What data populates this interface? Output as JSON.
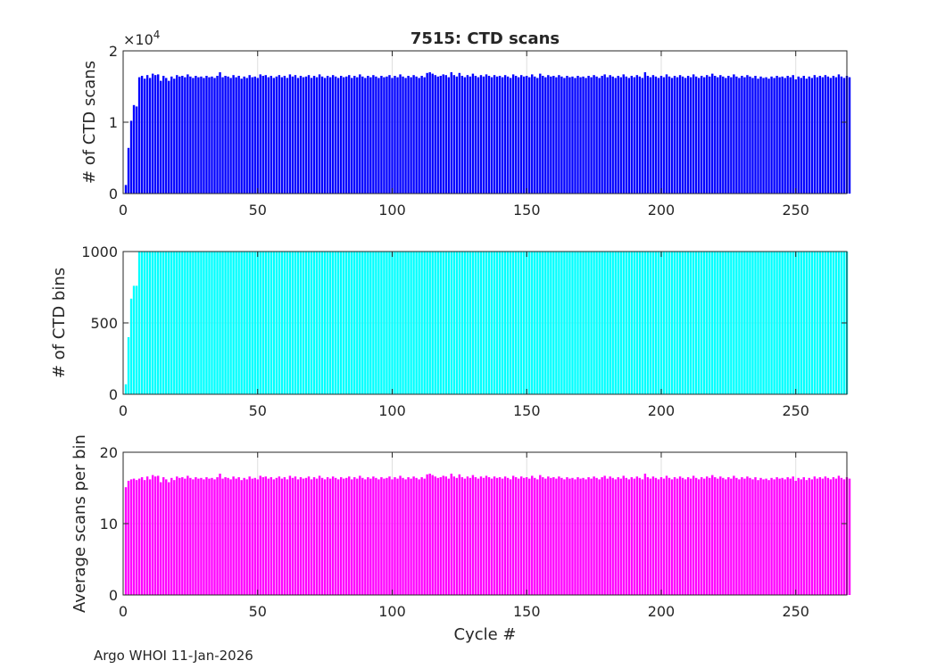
{
  "footer": "Argo WHOI 11-Jan-2026",
  "colors": {
    "scans": "#0000ff",
    "bins": "#00ffff",
    "avg": "#ff00ff",
    "axis": "#262626",
    "grid": "#dfdfdf"
  },
  "chart_data": [
    {
      "type": "bar",
      "title": "7515: CTD scans",
      "xlabel": "",
      "ylabel": "# of CTD scans",
      "y_exponent_label": "×10",
      "y_exponent": "4",
      "xlim": [
        0,
        269
      ],
      "ylim": [
        0,
        2
      ],
      "xticks": [
        0,
        50,
        100,
        150,
        200,
        250
      ],
      "yticks": [
        0,
        1,
        2
      ],
      "grid": true,
      "x": "cycles 1-268",
      "values_x1e4": [
        0.12,
        0.64,
        1.02,
        1.24,
        1.22,
        1.63,
        1.65,
        1.61,
        1.66,
        1.62,
        1.68,
        1.66,
        1.67,
        1.58,
        1.65,
        1.62,
        1.58,
        1.64,
        1.61,
        1.66,
        1.64,
        1.65,
        1.63,
        1.67,
        1.64,
        1.62,
        1.65,
        1.63,
        1.64,
        1.62,
        1.65,
        1.63,
        1.64,
        1.62,
        1.65,
        1.7,
        1.63,
        1.65,
        1.64,
        1.62,
        1.66,
        1.63,
        1.65,
        1.61,
        1.64,
        1.62,
        1.66,
        1.63,
        1.64,
        1.62,
        1.67,
        1.65,
        1.66,
        1.63,
        1.65,
        1.62,
        1.64,
        1.66,
        1.63,
        1.65,
        1.62,
        1.67,
        1.64,
        1.66,
        1.62,
        1.65,
        1.63,
        1.64,
        1.66,
        1.62,
        1.65,
        1.63,
        1.67,
        1.64,
        1.62,
        1.65,
        1.63,
        1.66,
        1.64,
        1.62,
        1.65,
        1.63,
        1.64,
        1.66,
        1.62,
        1.65,
        1.63,
        1.67,
        1.64,
        1.62,
        1.65,
        1.63,
        1.66,
        1.64,
        1.62,
        1.65,
        1.63,
        1.64,
        1.66,
        1.62,
        1.65,
        1.63,
        1.67,
        1.64,
        1.62,
        1.65,
        1.63,
        1.66,
        1.64,
        1.62,
        1.65,
        1.63,
        1.69,
        1.7,
        1.68,
        1.66,
        1.64,
        1.65,
        1.67,
        1.66,
        1.63,
        1.7,
        1.66,
        1.64,
        1.69,
        1.65,
        1.63,
        1.66,
        1.64,
        1.68,
        1.65,
        1.63,
        1.66,
        1.64,
        1.67,
        1.65,
        1.63,
        1.66,
        1.64,
        1.65,
        1.63,
        1.66,
        1.64,
        1.62,
        1.67,
        1.65,
        1.63,
        1.66,
        1.64,
        1.65,
        1.63,
        1.67,
        1.64,
        1.62,
        1.68,
        1.65,
        1.63,
        1.66,
        1.64,
        1.65,
        1.63,
        1.66,
        1.64,
        1.62,
        1.65,
        1.63,
        1.64,
        1.62,
        1.65,
        1.63,
        1.64,
        1.62,
        1.65,
        1.63,
        1.66,
        1.64,
        1.62,
        1.65,
        1.67,
        1.63,
        1.66,
        1.64,
        1.62,
        1.65,
        1.63,
        1.67,
        1.64,
        1.62,
        1.65,
        1.63,
        1.66,
        1.64,
        1.62,
        1.7,
        1.65,
        1.63,
        1.66,
        1.64,
        1.62,
        1.65,
        1.63,
        1.67,
        1.64,
        1.62,
        1.65,
        1.63,
        1.66,
        1.64,
        1.62,
        1.65,
        1.63,
        1.67,
        1.64,
        1.62,
        1.65,
        1.63,
        1.66,
        1.64,
        1.68,
        1.65,
        1.63,
        1.66,
        1.64,
        1.62,
        1.65,
        1.63,
        1.67,
        1.64,
        1.62,
        1.65,
        1.63,
        1.66,
        1.64,
        1.62,
        1.65,
        1.61,
        1.64,
        1.62,
        1.63,
        1.61,
        1.64,
        1.62,
        1.65,
        1.63,
        1.64,
        1.62,
        1.65,
        1.63,
        1.66,
        1.6,
        1.64,
        1.62,
        1.65,
        1.61,
        1.64,
        1.62,
        1.66,
        1.63,
        1.65,
        1.63,
        1.66,
        1.64,
        1.62,
        1.65,
        1.63,
        1.67,
        1.64,
        1.62,
        1.65,
        1.63
      ]
    },
    {
      "type": "bar",
      "title": "",
      "xlabel": "",
      "ylabel": "# of CTD bins",
      "xlim": [
        0,
        269
      ],
      "ylim": [
        0,
        1000
      ],
      "xticks": [
        0,
        50,
        100,
        150,
        200,
        250
      ],
      "yticks": [
        0,
        500,
        1000
      ],
      "grid": true,
      "x": "cycles 1-268",
      "values": [
        70,
        400,
        670,
        760,
        760,
        1000,
        1000,
        1000,
        1000,
        1000,
        1000,
        1000,
        1000,
        1000,
        1000,
        1000,
        1000,
        1000,
        1000,
        1000,
        1000,
        1000,
        1000,
        1000,
        1000,
        1000,
        1000,
        1000,
        1000,
        1000,
        1000,
        1000,
        1000,
        1000,
        1000,
        1000,
        1000,
        1000,
        1000,
        1000,
        1000,
        1000,
        1000,
        1000,
        1000,
        1000,
        1000,
        1000,
        1000,
        1000,
        1000,
        1000,
        1000,
        1000,
        1000,
        1000,
        1000,
        1000,
        1000,
        1000,
        1000,
        1000,
        1000,
        1000,
        1000,
        1000,
        1000,
        1000,
        1000,
        1000,
        1000,
        1000,
        1000,
        1000,
        1000,
        1000,
        1000,
        1000,
        1000,
        1000,
        1000,
        1000,
        1000,
        1000,
        1000,
        1000,
        1000,
        1000,
        1000,
        1000,
        1000,
        1000,
        1000,
        1000,
        1000,
        1000,
        1000,
        1000,
        1000,
        1000,
        1000,
        1000,
        1000,
        1000,
        1000,
        1000,
        1000,
        1000,
        1000,
        1000,
        1000,
        1000,
        1000,
        1000,
        1000,
        1000,
        1000,
        1000,
        1000,
        1000,
        1000,
        1000,
        1000,
        1000,
        1000,
        1000,
        1000,
        1000,
        1000,
        1000,
        1000,
        1000,
        1000,
        1000,
        1000,
        1000,
        1000,
        1000,
        1000,
        1000,
        1000,
        1000,
        1000,
        1000,
        1000,
        1000,
        1000,
        1000,
        1000,
        1000,
        1000,
        1000,
        1000,
        1000,
        1000,
        1000,
        1000,
        1000,
        1000,
        1000,
        1000,
        1000,
        1000,
        1000,
        1000,
        1000,
        1000,
        1000,
        1000,
        1000,
        1000,
        1000,
        1000,
        1000,
        1000,
        1000,
        1000,
        1000,
        1000,
        1000,
        1000,
        1000,
        1000,
        1000,
        1000,
        1000,
        1000,
        1000,
        1000,
        1000,
        1000,
        1000,
        1000,
        1000,
        1000,
        1000,
        1000,
        1000,
        1000,
        1000,
        1000,
        1000,
        1000,
        1000,
        1000,
        1000,
        1000,
        1000,
        1000,
        1000,
        1000,
        1000,
        1000,
        1000,
        1000,
        1000,
        1000,
        1000,
        1000,
        1000,
        1000,
        1000,
        1000,
        1000,
        1000,
        1000,
        1000,
        1000,
        1000,
        1000,
        1000,
        1000,
        1000,
        1000,
        1000,
        1000,
        1000,
        1000,
        1000,
        1000,
        1000,
        1000,
        1000,
        1000,
        1000,
        1000,
        1000,
        1000,
        1000,
        1000,
        1000,
        1000,
        1000,
        1000,
        1000,
        1000,
        1000,
        1000,
        1000,
        1000,
        1000,
        1000,
        1000,
        1000,
        1000,
        1000,
        1000,
        1000,
        1000
      ]
    },
    {
      "type": "bar",
      "title": "",
      "xlabel": "Cycle #",
      "ylabel": "Average scans per bin",
      "xlim": [
        0,
        269
      ],
      "ylim": [
        0,
        20
      ],
      "xticks": [
        0,
        50,
        100,
        150,
        200,
        250
      ],
      "yticks": [
        0,
        10,
        20
      ],
      "grid": true,
      "x": "cycles 1-268",
      "values": [
        15.1,
        16.0,
        16.2,
        16.3,
        16.1,
        16.3,
        16.5,
        16.1,
        16.6,
        16.2,
        16.8,
        16.6,
        16.7,
        15.8,
        16.5,
        16.2,
        15.8,
        16.4,
        16.1,
        16.6,
        16.4,
        16.5,
        16.3,
        16.7,
        16.4,
        16.2,
        16.5,
        16.3,
        16.4,
        16.2,
        16.5,
        16.3,
        16.4,
        16.2,
        16.5,
        17.0,
        16.3,
        16.5,
        16.4,
        16.2,
        16.6,
        16.3,
        16.5,
        16.1,
        16.4,
        16.2,
        16.6,
        16.3,
        16.4,
        16.2,
        16.7,
        16.5,
        16.6,
        16.3,
        16.5,
        16.2,
        16.4,
        16.6,
        16.3,
        16.5,
        16.2,
        16.7,
        16.4,
        16.6,
        16.2,
        16.5,
        16.3,
        16.4,
        16.6,
        16.2,
        16.5,
        16.3,
        16.7,
        16.4,
        16.2,
        16.5,
        16.3,
        16.6,
        16.4,
        16.2,
        16.5,
        16.3,
        16.4,
        16.6,
        16.2,
        16.5,
        16.3,
        16.7,
        16.4,
        16.2,
        16.5,
        16.3,
        16.6,
        16.4,
        16.2,
        16.5,
        16.3,
        16.4,
        16.6,
        16.2,
        16.5,
        16.3,
        16.7,
        16.4,
        16.2,
        16.5,
        16.3,
        16.6,
        16.4,
        16.2,
        16.5,
        16.3,
        16.9,
        17.0,
        16.8,
        16.6,
        16.4,
        16.5,
        16.7,
        16.6,
        16.3,
        17.0,
        16.6,
        16.4,
        16.9,
        16.5,
        16.3,
        16.6,
        16.4,
        16.8,
        16.5,
        16.3,
        16.6,
        16.4,
        16.7,
        16.5,
        16.3,
        16.6,
        16.4,
        16.5,
        16.3,
        16.6,
        16.4,
        16.2,
        16.7,
        16.5,
        16.3,
        16.6,
        16.4,
        16.5,
        16.3,
        16.7,
        16.4,
        16.2,
        16.8,
        16.5,
        16.3,
        16.6,
        16.4,
        16.5,
        16.3,
        16.6,
        16.4,
        16.2,
        16.5,
        16.3,
        16.4,
        16.2,
        16.5,
        16.3,
        16.4,
        16.2,
        16.5,
        16.3,
        16.6,
        16.4,
        16.2,
        16.5,
        16.7,
        16.3,
        16.6,
        16.4,
        16.2,
        16.5,
        16.3,
        16.7,
        16.4,
        16.2,
        16.5,
        16.3,
        16.6,
        16.4,
        16.2,
        17.0,
        16.5,
        16.3,
        16.6,
        16.4,
        16.2,
        16.5,
        16.3,
        16.7,
        16.4,
        16.2,
        16.5,
        16.3,
        16.6,
        16.4,
        16.2,
        16.5,
        16.3,
        16.7,
        16.4,
        16.2,
        16.5,
        16.3,
        16.6,
        16.4,
        16.8,
        16.5,
        16.3,
        16.6,
        16.4,
        16.2,
        16.5,
        16.3,
        16.7,
        16.4,
        16.2,
        16.5,
        16.3,
        16.6,
        16.4,
        16.2,
        16.5,
        16.1,
        16.4,
        16.2,
        16.3,
        16.1,
        16.4,
        16.2,
        16.5,
        16.3,
        16.4,
        16.2,
        16.5,
        16.3,
        16.6,
        16.0,
        16.4,
        16.2,
        16.5,
        16.1,
        16.4,
        16.2,
        16.6,
        16.3,
        16.5,
        16.3,
        16.6,
        16.4,
        16.2,
        16.5,
        16.3,
        16.7,
        16.4,
        16.2,
        16.5,
        16.3
      ]
    }
  ]
}
